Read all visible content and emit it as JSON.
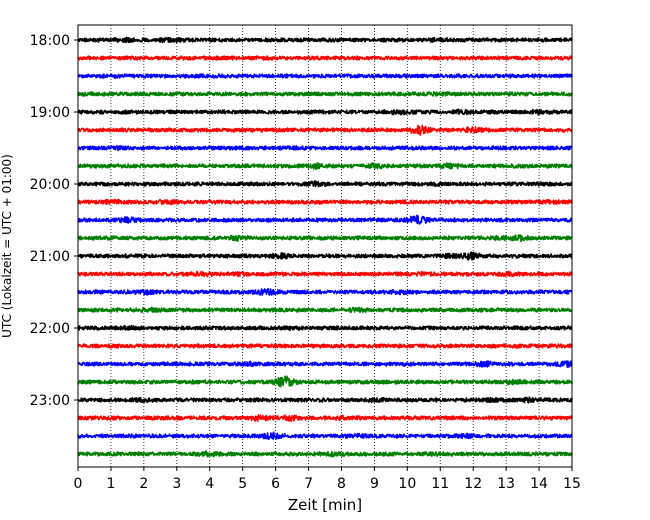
{
  "chart_data": {
    "type": "line",
    "chart_kind": "helicorder seismogram (stacked 15-minute traces)",
    "xlabel": "Zeit  [min]",
    "ylabel": "UTC (Lokalzeit = UTC + 01:00)",
    "xlim": [
      0,
      15
    ],
    "x_ticks": [
      0,
      1,
      2,
      3,
      4,
      5,
      6,
      7,
      8,
      9,
      10,
      11,
      12,
      13,
      14,
      15
    ],
    "x_tick_labels": [
      "0",
      "1",
      "2",
      "3",
      "4",
      "5",
      "6",
      "7",
      "8",
      "9",
      "10",
      "11",
      "12",
      "13",
      "14",
      "15"
    ],
    "y_tick_labels": [
      "18:00",
      "19:00",
      "20:00",
      "21:00",
      "22:00",
      "23:00"
    ],
    "trace_interval_min": 15,
    "trace_colors_cycle": [
      "#000000",
      "#ff0000",
      "#0000ff",
      "#008000"
    ],
    "grid": "vertical dotted lines at each minute",
    "traces": [
      {
        "start": "18:00",
        "color": "#000000",
        "bursts": [
          {
            "t": 1.5,
            "a": 1.6
          },
          {
            "t": 2.5,
            "a": 1.4
          },
          {
            "t": 3.0,
            "a": 1.3
          },
          {
            "t": 11.0,
            "a": 1.4
          }
        ]
      },
      {
        "start": "18:15",
        "color": "#ff0000",
        "bursts": [
          {
            "t": 5.7,
            "a": 1.3
          }
        ]
      },
      {
        "start": "18:30",
        "color": "#0000ff",
        "bursts": [
          {
            "t": 1.0,
            "a": 1.2
          }
        ]
      },
      {
        "start": "18:45",
        "color": "#008000",
        "bursts": [
          {
            "t": 10.7,
            "a": 1.3
          },
          {
            "t": 11.5,
            "a": 1.3
          }
        ]
      },
      {
        "start": "19:00",
        "color": "#000000",
        "bursts": [
          {
            "t": 9.8,
            "a": 1.9
          },
          {
            "t": 11.7,
            "a": 1.5
          },
          {
            "t": 14.0,
            "a": 1.6
          }
        ]
      },
      {
        "start": "19:15",
        "color": "#ff0000",
        "bursts": [
          {
            "t": 10.4,
            "a": 3.2
          },
          {
            "t": 12.0,
            "a": 1.7
          }
        ]
      },
      {
        "start": "19:30",
        "color": "#0000ff",
        "bursts": [
          {
            "t": 1.2,
            "a": 1.3
          },
          {
            "t": 6.5,
            "a": 1.3
          }
        ]
      },
      {
        "start": "19:45",
        "color": "#008000",
        "bursts": [
          {
            "t": 7.2,
            "a": 1.9
          },
          {
            "t": 9.0,
            "a": 1.6
          },
          {
            "t": 11.3,
            "a": 1.7
          }
        ]
      },
      {
        "start": "20:00",
        "color": "#000000",
        "bursts": [
          {
            "t": 7.2,
            "a": 1.7
          },
          {
            "t": 11.0,
            "a": 1.2
          }
        ]
      },
      {
        "start": "20:15",
        "color": "#ff0000",
        "bursts": [
          {
            "t": 1.0,
            "a": 1.5
          },
          {
            "t": 2.7,
            "a": 1.5
          },
          {
            "t": 14.3,
            "a": 1.4
          }
        ]
      },
      {
        "start": "20:30",
        "color": "#0000ff",
        "bursts": [
          {
            "t": 1.5,
            "a": 1.7
          },
          {
            "t": 10.3,
            "a": 2.8
          }
        ]
      },
      {
        "start": "20:45",
        "color": "#008000",
        "bursts": [
          {
            "t": 4.8,
            "a": 1.8
          },
          {
            "t": 12.8,
            "a": 1.6
          },
          {
            "t": 13.4,
            "a": 2.0
          }
        ]
      },
      {
        "start": "21:00",
        "color": "#000000",
        "bursts": [
          {
            "t": 6.2,
            "a": 1.8
          },
          {
            "t": 11.3,
            "a": 1.6
          },
          {
            "t": 11.9,
            "a": 2.3
          }
        ]
      },
      {
        "start": "21:15",
        "color": "#ff0000",
        "bursts": [
          {
            "t": 3.8,
            "a": 1.6
          },
          {
            "t": 4.9,
            "a": 1.5
          },
          {
            "t": 10.4,
            "a": 1.4
          },
          {
            "t": 13.0,
            "a": 1.4
          }
        ]
      },
      {
        "start": "21:30",
        "color": "#0000ff",
        "bursts": [
          {
            "t": 2.0,
            "a": 1.7
          },
          {
            "t": 5.7,
            "a": 2.2
          },
          {
            "t": 9.8,
            "a": 1.7
          }
        ]
      },
      {
        "start": "21:45",
        "color": "#008000",
        "bursts": [
          {
            "t": 2.2,
            "a": 1.5
          },
          {
            "t": 8.5,
            "a": 1.5
          }
        ]
      },
      {
        "start": "22:00",
        "color": "#000000",
        "bursts": [
          {
            "t": 1.5,
            "a": 1.4
          },
          {
            "t": 6.5,
            "a": 1.4
          }
        ]
      },
      {
        "start": "22:15",
        "color": "#ff0000",
        "bursts": []
      },
      {
        "start": "22:30",
        "color": "#0000ff",
        "bursts": [
          {
            "t": 5.1,
            "a": 1.6
          },
          {
            "t": 12.3,
            "a": 1.9
          },
          {
            "t": 14.8,
            "a": 1.9
          }
        ]
      },
      {
        "start": "22:45",
        "color": "#008000",
        "bursts": [
          {
            "t": 6.3,
            "a": 3.4
          },
          {
            "t": 13.2,
            "a": 1.6
          }
        ]
      },
      {
        "start": "23:00",
        "color": "#000000",
        "bursts": [
          {
            "t": 1.9,
            "a": 1.5
          },
          {
            "t": 9.0,
            "a": 1.4
          },
          {
            "t": 12.5,
            "a": 1.4
          },
          {
            "t": 13.7,
            "a": 1.6
          }
        ]
      },
      {
        "start": "23:15",
        "color": "#ff0000",
        "bursts": [
          {
            "t": 5.5,
            "a": 1.9
          },
          {
            "t": 6.4,
            "a": 1.8
          },
          {
            "t": 8.0,
            "a": 1.5
          }
        ]
      },
      {
        "start": "23:30",
        "color": "#0000ff",
        "bursts": [
          {
            "t": 5.9,
            "a": 2.2
          },
          {
            "t": 8.5,
            "a": 1.4
          },
          {
            "t": 11.8,
            "a": 1.5
          }
        ]
      },
      {
        "start": "23:45",
        "color": "#008000",
        "bursts": [
          {
            "t": 3.9,
            "a": 1.8
          },
          {
            "t": 7.8,
            "a": 1.6
          },
          {
            "t": 10.7,
            "a": 1.4
          }
        ]
      }
    ]
  }
}
